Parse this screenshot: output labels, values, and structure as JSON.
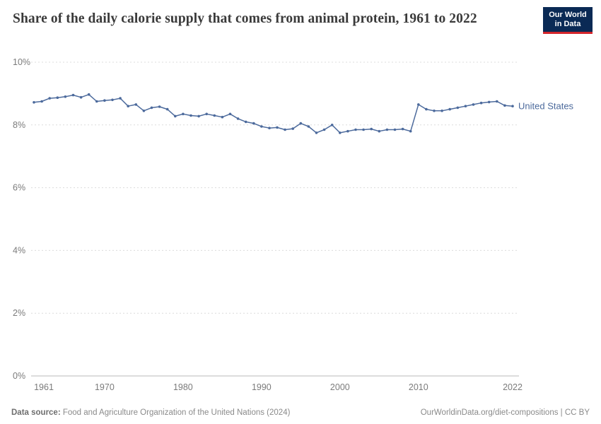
{
  "header": {
    "title": "Share of the daily calorie supply that comes from animal protein, 1961 to 2022",
    "logo": {
      "line1": "Our World",
      "line2": "in Data"
    }
  },
  "chart_data": {
    "type": "line",
    "title": "Share of the daily calorie supply that comes from animal protein, 1961 to 2022",
    "xlabel": "",
    "ylabel": "",
    "xlim": [
      1961,
      2022
    ],
    "ylim": [
      0,
      10
    ],
    "grid": "horizontal-dashed",
    "legend_position": "end-of-line",
    "x_ticks": [
      1961,
      1970,
      1980,
      1990,
      2000,
      2010,
      2022
    ],
    "y_ticks": [
      0,
      2,
      4,
      6,
      8,
      10
    ],
    "y_tick_labels": [
      "0%",
      "2%",
      "4%",
      "6%",
      "8%",
      "10%"
    ],
    "series": [
      {
        "name": "United States",
        "color": "#4C6A9C",
        "x": [
          1961,
          1962,
          1963,
          1964,
          1965,
          1966,
          1967,
          1968,
          1969,
          1970,
          1971,
          1972,
          1973,
          1974,
          1975,
          1976,
          1977,
          1978,
          1979,
          1980,
          1981,
          1982,
          1983,
          1984,
          1985,
          1986,
          1987,
          1988,
          1989,
          1990,
          1991,
          1992,
          1993,
          1994,
          1995,
          1996,
          1997,
          1998,
          1999,
          2000,
          2001,
          2002,
          2003,
          2004,
          2005,
          2006,
          2007,
          2008,
          2009,
          2010,
          2011,
          2012,
          2013,
          2014,
          2015,
          2016,
          2017,
          2018,
          2019,
          2020,
          2021,
          2022
        ],
        "values": [
          8.72,
          8.75,
          8.85,
          8.87,
          8.9,
          8.95,
          8.88,
          8.97,
          8.75,
          8.78,
          8.8,
          8.85,
          8.6,
          8.65,
          8.45,
          8.55,
          8.58,
          8.5,
          8.28,
          8.35,
          8.3,
          8.28,
          8.35,
          8.3,
          8.25,
          8.35,
          8.2,
          8.1,
          8.05,
          7.95,
          7.9,
          7.92,
          7.85,
          7.88,
          8.05,
          7.95,
          7.75,
          7.85,
          8.0,
          7.75,
          7.8,
          7.85,
          7.85,
          7.87,
          7.8,
          7.85,
          7.85,
          7.87,
          7.8,
          8.65,
          8.5,
          8.45,
          8.45,
          8.5,
          8.55,
          8.6,
          8.65,
          8.7,
          8.73,
          8.75,
          8.62,
          8.6
        ]
      }
    ]
  },
  "footer": {
    "source_label": "Data source:",
    "source_text": " Food and Agriculture Organization of the United Nations (2024)",
    "attribution": "OurWorldinData.org/diet-compositions | CC BY"
  }
}
